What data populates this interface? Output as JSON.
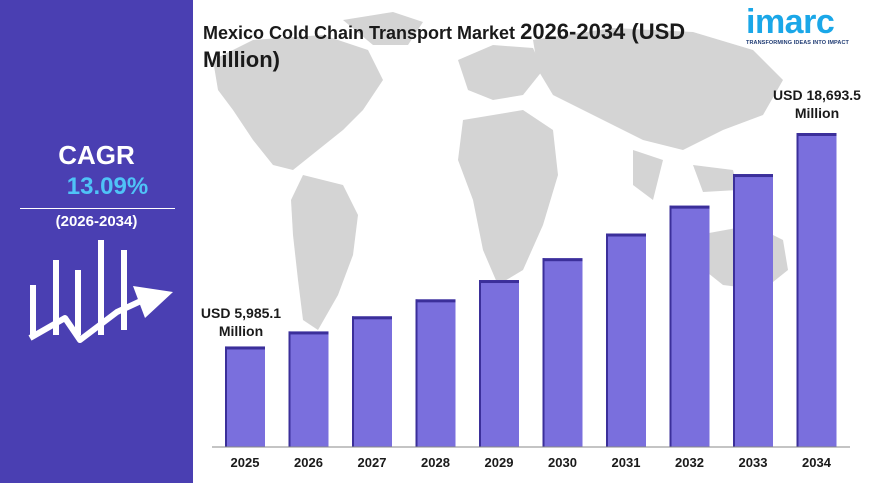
{
  "title_lead": "Mexico Cold Chain Transport Market",
  "title_tail": "2026-2034 (USD Million)",
  "logo": {
    "word": "imarc",
    "tagline": "TRANSFORMING IDEAS INTO IMPACT"
  },
  "sidebar": {
    "cagr_label": "CAGR",
    "cagr_value": "13.09%",
    "period": "(2026-2034)",
    "icon": "growth-chart-arrow-icon"
  },
  "annotations": {
    "first": {
      "line1": "USD 5,985.1",
      "line2": "Million"
    },
    "last": {
      "line1": "USD 18,693.5",
      "line2": "Million"
    }
  },
  "colors": {
    "sidebar": "#4a3fb2",
    "accent": "#4fc3f7",
    "bar": "#7a6fdd",
    "bar_dark": "#3b2f9a",
    "map": "#d4d4d4"
  },
  "chart_data": {
    "type": "bar",
    "categories": [
      "2025",
      "2026",
      "2027",
      "2028",
      "2029",
      "2030",
      "2031",
      "2032",
      "2033",
      "2034"
    ],
    "values": [
      5985.1,
      6880,
      7780,
      8790,
      9940,
      11240,
      12710,
      14370,
      16250,
      18693.5
    ],
    "title": "Mexico Cold Chain Transport Market 2026-2034 (USD Million)",
    "xlabel": "",
    "ylabel": "",
    "ylim": [
      0,
      18693.5
    ],
    "grid": false,
    "legend": "none"
  }
}
